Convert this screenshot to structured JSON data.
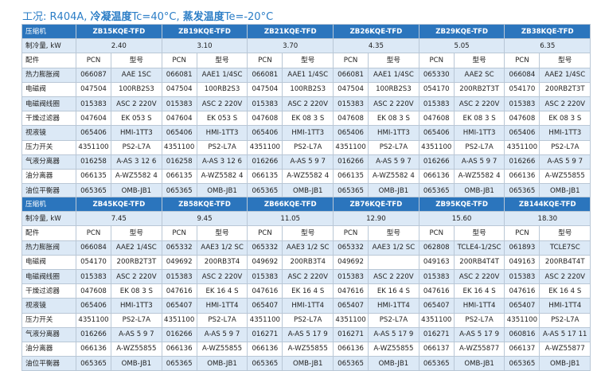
{
  "title": {
    "prefix": "工况: R404A, ",
    "b1": "冷凝温度",
    "t1": "Tc=40°C, ",
    "b2": "蒸发温度",
    "t2": "Te=-20°C"
  },
  "tables": [
    {
      "compressor_label": "压缩机",
      "models": [
        "ZB15KQE-TFD",
        "ZB19KQE-TFD",
        "ZB21KQE-TFD",
        "ZB26KQE-TFD",
        "ZB29KQE-TFD",
        "ZB38KQE-TFD"
      ],
      "capacity_label": "制冷量, kW",
      "capacities": [
        "2.40",
        "3.10",
        "3.70",
        "4.35",
        "5.05",
        "6.35"
      ],
      "parts_label": "配件",
      "pcn_label": "PCN",
      "model_label": "型号",
      "rows": [
        {
          "name": "热力膨胀阀",
          "cells": [
            "066087",
            "AAE 1SC",
            "066081",
            "AAE1 1/4SC",
            "066081",
            "AAE1 1/4SC",
            "066081",
            "AAE1 1/4SC",
            "065330",
            "AAE2 SC",
            "066084",
            "AAE2 1/4SC"
          ]
        },
        {
          "name": "电磁阀",
          "cells": [
            "047504",
            "100RB2S3",
            "047504",
            "100RB2S3",
            "047504",
            "100RB2S3",
            "047504",
            "100RB2S3",
            "054170",
            "200RB2T3T",
            "054170",
            "200RB2T3T"
          ]
        },
        {
          "name": "电磁阀线圈",
          "cells": [
            "015383",
            "ASC 2 220V",
            "015383",
            "ASC 2 220V",
            "015383",
            "ASC 2 220V",
            "015383",
            "ASC 2 220V",
            "015383",
            "ASC 2 220V",
            "015383",
            "ASC 2 220V"
          ]
        },
        {
          "name": "干燥过滤器",
          "cells": [
            "047604",
            "EK 053 S",
            "047604",
            "EK 053 S",
            "047608",
            "EK 08 3 S",
            "047608",
            "EK 08 3 S",
            "047608",
            "EK 08 3 S",
            "047608",
            "EK 08 3 S"
          ]
        },
        {
          "name": "视液镜",
          "cells": [
            "065406",
            "HMI-1TT3",
            "065406",
            "HMI-1TT3",
            "065406",
            "HMI-1TT3",
            "065406",
            "HMI-1TT3",
            "065406",
            "HMI-1TT3",
            "065406",
            "HMI-1TT3"
          ]
        },
        {
          "name": "压力开关",
          "cells": [
            "4351100",
            "PS2-L7A",
            "4351100",
            "PS2-L7A",
            "4351100",
            "PS2-L7A",
            "4351100",
            "PS2-L7A",
            "4351100",
            "PS2-L7A",
            "4351100",
            "PS2-L7A"
          ]
        },
        {
          "name": "气液分离器",
          "cells": [
            "016258",
            "A-AS 3 12 6",
            "016258",
            "A-AS 3 12 6",
            "016266",
            "A-AS 5 9 7",
            "016266",
            "A-AS 5 9 7",
            "016266",
            "A-AS 5 9 7",
            "016266",
            "A-AS 5 9 7"
          ]
        },
        {
          "name": "油分离器",
          "cells": [
            "066135",
            "A-WZ5582 4",
            "066135",
            "A-WZ5582 4",
            "066135",
            "A-WZ5582 4",
            "066135",
            "A-WZ5582 4",
            "066136",
            "A-WZ5582 4",
            "066136",
            "A-WZ55855"
          ]
        },
        {
          "name": "油位平衡器",
          "cells": [
            "065365",
            "OMB-JB1",
            "065365",
            "OMB-JB1",
            "065365",
            "OMB-JB1",
            "065365",
            "OMB-JB1",
            "065365",
            "OMB-JB1",
            "065365",
            "OMB-JB1"
          ]
        }
      ]
    },
    {
      "compressor_label": "压缩机",
      "models": [
        "ZB45KQE-TFD",
        "ZB58KQE-TFD",
        "ZB66KQE-TFD",
        "ZB76KQE-TFD",
        "ZB95KQE-TFD",
        "ZB144KQE-TFD"
      ],
      "capacity_label": "制冷量, kW",
      "capacities": [
        "7.45",
        "9.45",
        "11.05",
        "12.90",
        "15.60",
        "18.30"
      ],
      "parts_label": "配件",
      "pcn_label": "PCN",
      "model_label": "型号",
      "rows": [
        {
          "name": "热力膨胀阀",
          "cells": [
            "066084",
            "AAE2 1/4SC",
            "065332",
            "AAE3 1/2 SC",
            "065332",
            "AAE3 1/2 SC",
            "065332",
            "AAE3 1/2 SC",
            "062808",
            "TCLE4-1/2SC",
            "061893",
            "TCLE7SC"
          ]
        },
        {
          "name": "电磁阀",
          "cells": [
            "054170",
            "200RB2T3T",
            "049692",
            "200RB3T4",
            "049692",
            "200RB3T4",
            "049692",
            "",
            "049163",
            "200RB4T4T",
            "049163",
            "200RB4T4T"
          ]
        },
        {
          "name": "电磁阀线圈",
          "cells": [
            "015383",
            "ASC 2 220V",
            "015383",
            "ASC 2 220V",
            "015383",
            "ASC 2 220V",
            "015383",
            "ASC 2 220V",
            "015383",
            "ASC 2 220V",
            "015383",
            "ASC 2 220V"
          ]
        },
        {
          "name": "干燥过滤器",
          "cells": [
            "047608",
            "EK 08 3 S",
            "047616",
            "EK 16 4 S",
            "047616",
            "EK 16 4 S",
            "047616",
            "EK 16 4 S",
            "047616",
            "EK 16 4 S",
            "047616",
            "EK 16 4 S"
          ]
        },
        {
          "name": "视液镜",
          "cells": [
            "065406",
            "HMI-1TT3",
            "065407",
            "HMI-1TT4",
            "065407",
            "HMI-1TT4",
            "065407",
            "HMI-1TT4",
            "065407",
            "HMI-1TT4",
            "065407",
            "HMI-1TT4"
          ]
        },
        {
          "name": "压力开关",
          "cells": [
            "4351100",
            "PS2-L7A",
            "4351100",
            "PS2-L7A",
            "4351100",
            "PS2-L7A",
            "4351100",
            "PS2-L7A",
            "4351100",
            "PS2-L7A",
            "4351100",
            "PS2-L7A"
          ]
        },
        {
          "name": "气液分离器",
          "cells": [
            "016266",
            "A-AS 5 9 7",
            "016266",
            "A-AS 5 9 7",
            "016271",
            "A-AS 5 17 9",
            "016271",
            "A-AS 5 17 9",
            "016271",
            "A-AS 5 17 9",
            "060816",
            "A-AS 5 17 11"
          ]
        },
        {
          "name": "油分离器",
          "cells": [
            "066136",
            "A-WZ55855",
            "066136",
            "A-WZ55855",
            "066136",
            "A-WZ55855",
            "066136",
            "A-WZ55855",
            "066137",
            "A-WZ55877",
            "066137",
            "A-WZ55877"
          ]
        },
        {
          "name": "油位平衡器",
          "cells": [
            "065365",
            "OMB-JB1",
            "065365",
            "OMB-JB1",
            "065365",
            "OMB-JB1",
            "065365",
            "OMB-JB1",
            "065365",
            "OMB-JB1",
            "065365",
            "OMB-JB1"
          ]
        }
      ]
    }
  ],
  "colors": {
    "header_blue": "#2b75bd",
    "title_blue": "#2b7dc6",
    "stripe": "#dce9f6",
    "border": "#b9c7d6"
  }
}
